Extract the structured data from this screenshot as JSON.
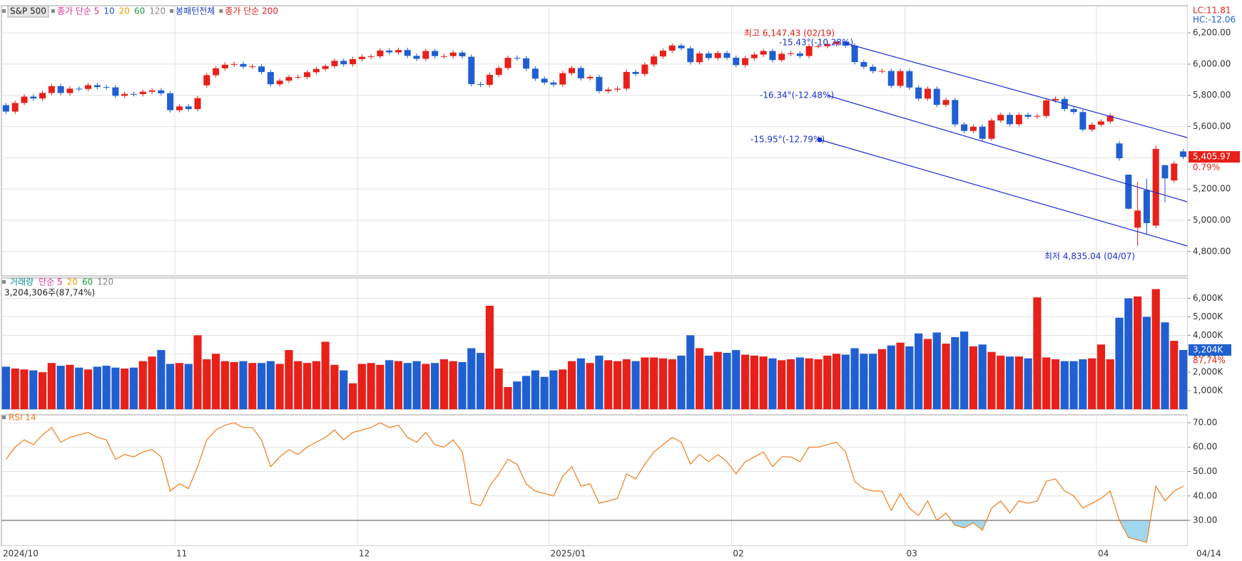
{
  "chart_data": [
    {
      "type": "candlestick",
      "title": "S&P 500",
      "legend": [
        {
          "label": "종가 단순 5",
          "color": "#e0309a"
        },
        {
          "label": "10",
          "color": "#1f4fd1"
        },
        {
          "label": "20",
          "color": "#f0a000"
        },
        {
          "label": "60",
          "color": "#1e9e3a"
        },
        {
          "label": "120",
          "color": "#888888"
        },
        {
          "label": "봉패턴전체",
          "color": "#1a3fc4"
        },
        {
          "label": "종가 단순 200",
          "color": "#e02020"
        }
      ],
      "categories": [
        "2024/10",
        null,
        null,
        null,
        null,
        null,
        null,
        null,
        null,
        null,
        null,
        null,
        null,
        null,
        null,
        null,
        null,
        null,
        null,
        "11",
        null,
        null,
        null,
        null,
        null,
        null,
        null,
        null,
        null,
        null,
        null,
        null,
        null,
        null,
        null,
        null,
        null,
        null,
        null,
        "12",
        null,
        null,
        null,
        null,
        null,
        null,
        null,
        null,
        null,
        null,
        null,
        null,
        null,
        null,
        null,
        null,
        null,
        null,
        null,
        null,
        "2025/01",
        null,
        null,
        null,
        null,
        null,
        null,
        null,
        null,
        null,
        null,
        null,
        null,
        null,
        null,
        null,
        null,
        null,
        null,
        null,
        "02",
        null,
        null,
        null,
        null,
        null,
        null,
        null,
        null,
        null,
        null,
        null,
        null,
        null,
        null,
        null,
        null,
        null,
        null,
        "03",
        null,
        null,
        null,
        null,
        null,
        null,
        null,
        null,
        null,
        null,
        null,
        null,
        null,
        null,
        null,
        null,
        null,
        null,
        null,
        null,
        "04",
        null,
        null,
        null,
        null,
        null,
        null,
        null,
        null,
        "04/14"
      ],
      "open": [
        5737,
        5696,
        5751,
        5792,
        5780,
        5815,
        5859,
        5815,
        5843,
        5841,
        5865,
        5853,
        5851,
        5797,
        5809,
        5808,
        5823,
        5832,
        5813,
        5705,
        5729,
        5712,
        5864,
        5929,
        5973,
        5996,
        6001,
        5984,
        5985,
        5949,
        5871,
        5894,
        5917,
        5917,
        5948,
        5969,
        5987,
        6021,
        5999,
        6032,
        6047,
        6050,
        6087,
        6075,
        6090,
        6053,
        6034,
        6084,
        6051,
        6051,
        6074,
        6047,
        5872,
        5867,
        5931,
        5975,
        6040,
        6037,
        5971,
        5907,
        5882,
        5869,
        5942,
        5975,
        5909,
        5918,
        5827,
        5837,
        5843,
        5950,
        5937,
        5997,
        6049,
        6086,
        6119,
        6101,
        6012,
        6068,
        6039,
        6071,
        6041,
        5994,
        6038,
        6061,
        6084,
        6026,
        6066,
        6068,
        6052,
        6115,
        6115,
        6129,
        6144,
        6118,
        6013,
        5983,
        5955,
        5956,
        5861,
        5955,
        5850,
        5779,
        5842,
        5739,
        5770,
        5614,
        5572,
        5599,
        5522,
        5639,
        5675,
        5615,
        5675,
        5663,
        5668,
        5768,
        5777,
        5712,
        5693,
        5581,
        5612,
        5633,
        5492,
        5292,
        4953,
        5193,
        4966,
        5353,
        5255,
        5441
      ],
      "high": [
        5752,
        5766,
        5807,
        5807,
        5830,
        5874,
        5874,
        5858,
        5858,
        5880,
        5880,
        5868,
        5866,
        5824,
        5824,
        5838,
        5847,
        5847,
        5828,
        5744,
        5744,
        5797,
        5944,
        5988,
        6011,
        6016,
        6016,
        6000,
        6000,
        5964,
        5909,
        5932,
        5932,
        5963,
        5984,
        6002,
        6036,
        6036,
        6047,
        6062,
        6065,
        6102,
        6102,
        6105,
        6105,
        6068,
        6099,
        6099,
        6066,
        6089,
        6089,
        6062,
        5887,
        5946,
        5990,
        6055,
        6055,
        6052,
        5986,
        5922,
        5897,
        5957,
        5990,
        5990,
        5933,
        5933,
        5852,
        5858,
        5965,
        5965,
        6012,
        6064,
        6101,
        6134,
        6134,
        6116,
        6083,
        6083,
        6086,
        6086,
        6056,
        6053,
        6076,
        6099,
        6099,
        6081,
        6083,
        6083,
        6130,
        6130,
        6144,
        6147,
        6146,
        6133,
        6028,
        5998,
        5971,
        5971,
        5970,
        5970,
        5865,
        5857,
        5857,
        5785,
        5785,
        5629,
        5614,
        5614,
        5654,
        5690,
        5690,
        5690,
        5690,
        5683,
        5783,
        5792,
        5792,
        5727,
        5708,
        5627,
        5648,
        5686,
        5507,
        5292,
        5246,
        5267,
        5481,
        5353,
        5378,
        5456
      ],
      "low": [
        5681,
        5681,
        5736,
        5765,
        5765,
        5800,
        5800,
        5800,
        5826,
        5826,
        5838,
        5836,
        5782,
        5782,
        5793,
        5793,
        5808,
        5798,
        5690,
        5690,
        5697,
        5697,
        5849,
        5914,
        5958,
        5981,
        5969,
        5969,
        5934,
        5856,
        5856,
        5879,
        5902,
        5902,
        5933,
        5954,
        5972,
        5984,
        5984,
        6017,
        6032,
        6035,
        6060,
        6060,
        6038,
        6019,
        6019,
        6036,
        6036,
        6036,
        6035,
        5857,
        5852,
        5852,
        5916,
        5960,
        6022,
        5956,
        5892,
        5867,
        5854,
        5854,
        5927,
        5894,
        5894,
        5812,
        5812,
        5822,
        5828,
        5922,
        5922,
        5982,
        6034,
        6071,
        6086,
        5997,
        5997,
        6024,
        6024,
        6026,
        5979,
        5979,
        6023,
        6046,
        6011,
        6011,
        6051,
        6037,
        6037,
        6100,
        6100,
        6114,
        6103,
        5998,
        5968,
        5940,
        5940,
        5846,
        5846,
        5835,
        5764,
        5764,
        5724,
        5724,
        5599,
        5557,
        5557,
        5507,
        5507,
        5624,
        5600,
        5600,
        5648,
        5648,
        5653,
        5753,
        5697,
        5678,
        5566,
        5566,
        5597,
        5618,
        5382,
        5069,
        4835,
        4911,
        4949,
        5115,
        5240,
        5391
      ],
      "close": [
        5696,
        5751,
        5792,
        5780,
        5815,
        5859,
        5815,
        5843,
        5841,
        5865,
        5853,
        5851,
        5797,
        5809,
        5808,
        5823,
        5832,
        5813,
        5705,
        5729,
        5712,
        5782,
        5929,
        5973,
        5996,
        6001,
        5984,
        5985,
        5949,
        5871,
        5894,
        5917,
        5917,
        5948,
        5969,
        5987,
        6021,
        5999,
        6032,
        6047,
        6050,
        6087,
        6075,
        6090,
        6053,
        6034,
        6084,
        6051,
        6051,
        6074,
        6050,
        5872,
        5867,
        5931,
        5975,
        6040,
        6037,
        5971,
        5907,
        5882,
        5869,
        5942,
        5975,
        5909,
        5918,
        5827,
        5837,
        5843,
        5950,
        5937,
        5997,
        6049,
        6086,
        6119,
        6101,
        6012,
        6068,
        6039,
        6071,
        6041,
        5994,
        6038,
        6061,
        6084,
        6026,
        6066,
        6068,
        6052,
        6115,
        6115,
        6129,
        6144,
        6118,
        6013,
        5983,
        5955,
        5956,
        5861,
        5955,
        5850,
        5779,
        5842,
        5739,
        5770,
        5614,
        5572,
        5599,
        5522,
        5639,
        5675,
        5615,
        5675,
        5663,
        5668,
        5768,
        5777,
        5712,
        5693,
        5581,
        5612,
        5633,
        5671,
        5397,
        5074,
        5062,
        4982,
        5457,
        5268,
        5363,
        5406
      ],
      "up_color": "#e8201a",
      "down_color": "#1f5fd1",
      "ylim": [
        4644,
        6374
      ],
      "yticks": [
        {
          "value": 4800,
          "label": "4,800.00"
        },
        {
          "value": 5000,
          "label": "5,000.00"
        },
        {
          "value": 5200,
          "label": "5,200.00"
        },
        {
          "value": 5400,
          "label": "5,400.00"
        },
        {
          "value": 5600,
          "label": "5,600.00"
        },
        {
          "value": 5800,
          "label": "5,800.00"
        },
        {
          "value": 6000,
          "label": "6,000.00"
        },
        {
          "value": 6200,
          "label": "6,200.00"
        }
      ],
      "grid": true,
      "annotations": [
        "최고 6,147.43 (02/19)",
        "-15.43°(-10.28%)",
        "-16.34°(-12.48%)",
        "-15.95°(-12.79%)",
        "최저 4,835.04 (04/07)"
      ],
      "last_label": "5,405.97",
      "last_change": "0.79%",
      "lc": "LC:11.81",
      "hc": "HC:-12.06"
    },
    {
      "type": "bar",
      "title": "거래량",
      "legend": [
        {
          "label": "단순 5",
          "color": "#e0309a"
        },
        {
          "label": "20",
          "color": "#f0a000"
        },
        {
          "label": "60",
          "color": "#1e9e3a"
        },
        {
          "label": "120",
          "color": "#888888"
        }
      ],
      "subtitle": "3,204,306주(87,74%)",
      "values": [
        2300,
        2200,
        2150,
        2100,
        2000,
        2500,
        2350,
        2400,
        2250,
        2150,
        2300,
        2350,
        2250,
        2200,
        2250,
        2600,
        2850,
        3200,
        2450,
        2500,
        2450,
        4000,
        2700,
        3000,
        2600,
        2550,
        2600,
        2500,
        2500,
        2600,
        2450,
        3200,
        2600,
        2500,
        2600,
        3650,
        2400,
        2100,
        1400,
        2450,
        2500,
        2400,
        2650,
        2600,
        2500,
        2600,
        2450,
        2500,
        2700,
        2600,
        2550,
        3300,
        3050,
        5600,
        2200,
        1200,
        1500,
        1800,
        2100,
        1750,
        2100,
        2150,
        2600,
        2750,
        2500,
        2900,
        2650,
        2600,
        2700,
        2600,
        2800,
        2800,
        2750,
        2700,
        2900,
        4000,
        3300,
        2900,
        3100,
        3050,
        3200,
        2950,
        2900,
        2850,
        2750,
        2650,
        2700,
        2800,
        2750,
        2700,
        2900,
        3000,
        2950,
        3300,
        3000,
        3000,
        3250,
        3450,
        3600,
        3400,
        4100,
        3800,
        4150,
        3550,
        3900,
        4200,
        3400,
        3500,
        3100,
        2900,
        2850,
        2850,
        2750,
        6050,
        2800,
        2700,
        2600,
        2600,
        2700,
        2750,
        3500,
        2700,
        4950,
        6000,
        6100,
        5000,
        6500,
        4700,
        3700,
        3204
      ],
      "ylim": [
        0,
        7100
      ],
      "yticks": [
        {
          "value": 1000,
          "label": "1,000K"
        },
        {
          "value": 2000,
          "label": "2,000K"
        },
        {
          "value": 3000,
          "label": "3,000K"
        },
        {
          "value": 4000,
          "label": "4,000K"
        },
        {
          "value": 5000,
          "label": "5,000K"
        },
        {
          "value": 6000,
          "label": "6,000K"
        }
      ],
      "grid": true,
      "last_label": "3,204K",
      "last_change": "87,74%"
    },
    {
      "type": "line",
      "title": "RSI 14",
      "color": "#f07d1a",
      "fill_color": "#a0d8ef",
      "threshold": 30,
      "values": [
        55,
        60,
        63,
        61,
        65,
        68,
        62,
        64,
        65,
        66,
        64,
        63,
        55,
        57,
        56,
        58,
        59,
        56,
        42,
        45,
        43,
        52,
        63,
        67,
        69,
        70,
        68,
        68,
        63,
        52,
        56,
        59,
        57,
        60,
        62,
        64,
        67,
        63,
        66,
        67,
        68,
        70,
        68,
        69,
        64,
        62,
        66,
        61,
        60,
        63,
        58,
        37,
        36,
        44,
        49,
        55,
        53,
        45,
        42,
        41,
        40,
        48,
        52,
        44,
        45,
        37,
        38,
        39,
        49,
        47,
        53,
        58,
        61,
        64,
        62,
        53,
        57,
        54,
        57,
        54,
        49,
        54,
        56,
        58,
        52,
        56,
        56,
        54,
        60,
        60,
        61,
        62,
        58,
        46,
        43,
        42,
        42,
        34,
        41,
        35,
        32,
        38,
        30,
        33,
        28,
        27,
        29,
        26,
        35,
        38,
        33,
        38,
        37,
        38,
        46,
        47,
        42,
        40,
        35,
        37,
        39,
        42,
        30,
        23,
        22,
        21,
        44,
        38,
        42,
        44
      ],
      "ylim": [
        19.5,
        73.2
      ],
      "yticks": [
        {
          "value": 30,
          "label": "30.00"
        },
        {
          "value": 40,
          "label": "40.00"
        },
        {
          "value": 50,
          "label": "50.00"
        },
        {
          "value": 60,
          "label": "60.00"
        },
        {
          "value": 70,
          "label": "70.00"
        }
      ],
      "grid": true
    }
  ]
}
